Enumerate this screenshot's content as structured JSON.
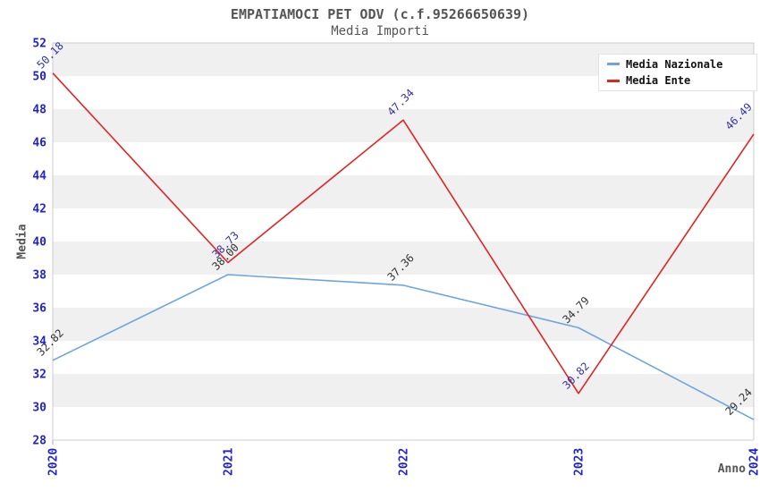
{
  "header": {
    "title": "EMPATIAMOCI PET ODV (c.f.95266650639)",
    "subtitle": "Media Importi"
  },
  "chart_data": {
    "type": "line",
    "title": "EMPATIAMOCI PET ODV (c.f.95266650639)",
    "subtitle": "Media Importi",
    "xlabel": "Anno",
    "ylabel": "Media",
    "categories": [
      "2020",
      "2021",
      "2022",
      "2023",
      "2024"
    ],
    "series": [
      {
        "name": "Media Nazionale",
        "color": "#6aa5e0",
        "label_color": "#333333",
        "values": [
          32.82,
          38.0,
          37.36,
          34.79,
          29.24
        ]
      },
      {
        "name": "Media Ente",
        "color": "#e02424",
        "label_color": "#3333aa",
        "values": [
          50.18,
          38.73,
          47.34,
          30.82,
          46.49
        ]
      }
    ],
    "ylim": [
      28,
      52
    ],
    "ytick_step": 2,
    "yticks": [
      28,
      30,
      32,
      34,
      36,
      38,
      40,
      42,
      44,
      46,
      48,
      50,
      52
    ],
    "grid": "alternating-horizontal-bands",
    "legend_position": "top-right",
    "colors": {
      "axis_tick_label": "#2222cc",
      "band_gray": "#f0f0f0",
      "band_white": "#ffffff",
      "plot_border": "#cccccc",
      "title_text": "#555555",
      "legend_text": "#111111"
    }
  }
}
